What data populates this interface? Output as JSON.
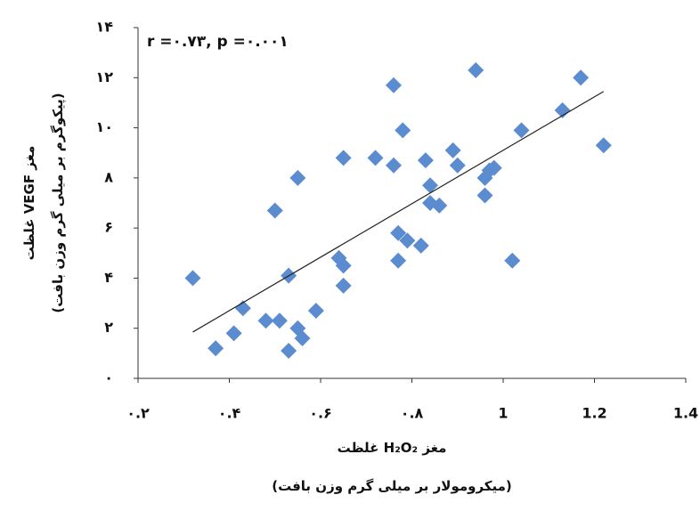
{
  "chart_data": {
    "type": "scatter",
    "annotation": "r =۰.۷۳, p =۰.۰۰۱",
    "xlabel": "غلظت H₂O₂ مغز",
    "xlabel_sub": "(میکرومولار بر میلی گرم وزن بافت)",
    "ylabel": "غلظت VEGF مغز",
    "ylabel_sub": "(پیکوگرم بر میلی گرم وزن بافت)",
    "color": "#5b8ccf",
    "xlim": [
      0.2,
      1.4
    ],
    "ylim": [
      0,
      14
    ],
    "xticks": [
      {
        "value": 0.2,
        "label": "۰.۲"
      },
      {
        "value": 0.4,
        "label": "۰.۴"
      },
      {
        "value": 0.6,
        "label": "۰.۶"
      },
      {
        "value": 0.8,
        "label": "۰.۸"
      },
      1,
      1.2,
      1.4
    ],
    "yticks": [
      {
        "value": 0,
        "label": "۰"
      },
      {
        "value": 2,
        "label": "۲"
      },
      {
        "value": 4,
        "label": "۴"
      },
      {
        "value": 6,
        "label": "۶"
      },
      {
        "value": 8,
        "label": "۸"
      },
      {
        "value": 10,
        "label": "۱۰"
      },
      {
        "value": 12,
        "label": "۱۲"
      },
      {
        "value": 14,
        "label": "۱۴"
      }
    ],
    "x": [
      0.32,
      0.37,
      0.41,
      0.43,
      0.48,
      0.51,
      0.5,
      0.53,
      0.53,
      0.55,
      0.56,
      0.55,
      0.59,
      0.65,
      0.64,
      0.65,
      0.65,
      0.72,
      0.76,
      0.76,
      0.77,
      0.77,
      0.78,
      0.79,
      0.82,
      0.83,
      0.84,
      0.84,
      0.86,
      0.89,
      0.9,
      0.94,
      0.96,
      0.96,
      0.97,
      0.98,
      1.02,
      1.04,
      1.13,
      1.17,
      1.22
    ],
    "values": [
      4.0,
      1.2,
      1.8,
      2.8,
      2.3,
      2.3,
      6.7,
      4.1,
      1.1,
      2.0,
      1.6,
      8.0,
      2.7,
      8.8,
      4.8,
      4.5,
      3.7,
      8.8,
      8.5,
      11.7,
      5.8,
      4.7,
      9.9,
      5.5,
      5.3,
      8.7,
      7.7,
      7.0,
      6.9,
      9.1,
      8.5,
      12.3,
      8.0,
      7.3,
      8.3,
      8.4,
      4.7,
      9.9,
      10.7,
      12.0,
      9.3
    ],
    "trendline": {
      "x": [
        0.32,
        1.22
      ],
      "y": [
        1.85,
        11.45
      ],
      "color": "#222222"
    }
  }
}
